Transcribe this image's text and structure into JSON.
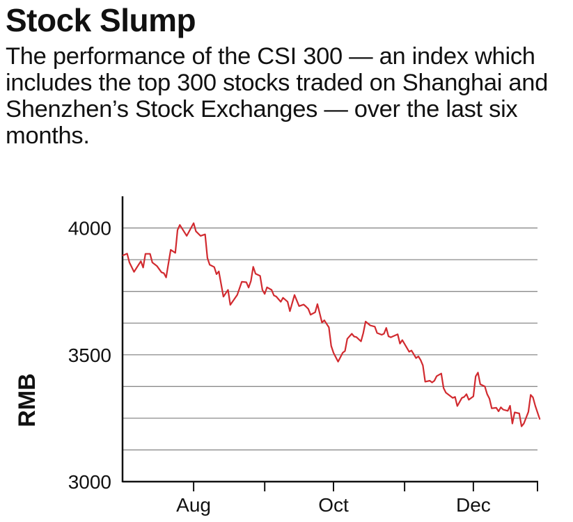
{
  "title": "Stock Slump",
  "subtitle": "The performance of the CSI 300 — an index which includes the top 300 stocks traded on Shanghai and Shenzhen’s Stock Exchanges — over the last six months.",
  "chart_data": {
    "type": "line",
    "title": "Stock Slump",
    "xlabel": "",
    "ylabel": "RMB",
    "ylim": [
      3000,
      4125
    ],
    "yticks": [
      3000,
      3500,
      4000
    ],
    "ygrid_step": 125,
    "grid": true,
    "xticks": [
      {
        "month": "08",
        "label": "Aug"
      },
      {
        "month": "09",
        "label": ""
      },
      {
        "month": "10",
        "label": "Oct"
      },
      {
        "month": "11",
        "label": ""
      },
      {
        "month": "12",
        "label": "Dec"
      },
      {
        "month": "13",
        "label": ""
      }
    ],
    "xrange": [
      "07-01",
      "12-31"
    ],
    "line_color": "#d12a2f",
    "series": [
      {
        "x": [
          "07-01",
          "07-03",
          "07-04",
          "07-06",
          "07-09",
          "07-10",
          "07-11",
          "07-13",
          "07-14",
          "07-16",
          "07-18",
          "07-19",
          "07-20",
          "07-22",
          "07-24",
          "07-25",
          "07-26",
          "07-29",
          "08-01",
          "08-02",
          "08-04",
          "08-06",
          "08-07",
          "08-08",
          "08-10",
          "08-11",
          "08-12",
          "08-14",
          "08-16",
          "08-17",
          "08-19",
          "08-20",
          "08-22",
          "08-24",
          "08-25",
          "08-26",
          "08-27",
          "08-28",
          "08-30",
          "08-31",
          "09-01",
          "09-02",
          "09-04",
          "09-05",
          "09-06",
          "09-08",
          "09-09",
          "09-11",
          "09-12",
          "09-14",
          "09-16",
          "09-18",
          "09-19",
          "09-20",
          "09-21",
          "09-23",
          "09-24",
          "09-26",
          "09-27",
          "09-29",
          "09-30",
          "10-01",
          "10-03",
          "10-05",
          "10-06",
          "10-07",
          "10-09",
          "10-10",
          "10-11",
          "10-13",
          "10-14",
          "10-15",
          "10-17",
          "10-19",
          "10-20",
          "10-22",
          "10-23",
          "10-24",
          "10-25",
          "10-26",
          "10-29",
          "10-30",
          "10-31",
          "11-03",
          "11-04",
          "11-06",
          "11-07",
          "11-08",
          "11-09",
          "11-10",
          "11-12",
          "11-13",
          "11-14",
          "11-15",
          "11-17",
          "11-18",
          "11-19",
          "11-22",
          "11-23",
          "11-24",
          "11-26",
          "11-27",
          "11-28",
          "11-29",
          "12-01",
          "12-02",
          "12-03",
          "12-04",
          "12-06",
          "12-07",
          "12-08",
          "12-09",
          "12-11",
          "12-12",
          "12-13",
          "12-14",
          "12-16",
          "12-17",
          "12-18",
          "12-19",
          "12-21",
          "12-22",
          "12-23",
          "12-25",
          "12-26",
          "12-27",
          "12-28",
          "12-30"
        ],
        "y": [
          3891,
          3899,
          3864,
          3827,
          3869,
          3844,
          3898,
          3898,
          3864,
          3850,
          3825,
          3822,
          3805,
          3914,
          3902,
          3992,
          4012,
          3969,
          4019,
          3987,
          3969,
          3975,
          3882,
          3855,
          3846,
          3818,
          3829,
          3729,
          3756,
          3697,
          3723,
          3736,
          3788,
          3786,
          3765,
          3791,
          3847,
          3820,
          3811,
          3756,
          3740,
          3766,
          3756,
          3734,
          3730,
          3709,
          3725,
          3709,
          3672,
          3736,
          3692,
          3698,
          3690,
          3681,
          3658,
          3668,
          3700,
          3627,
          3636,
          3608,
          3535,
          3508,
          3473,
          3508,
          3515,
          3563,
          3583,
          3572,
          3570,
          3553,
          3586,
          3631,
          3616,
          3611,
          3586,
          3579,
          3583,
          3606,
          3573,
          3569,
          3581,
          3544,
          3558,
          3512,
          3517,
          3487,
          3494,
          3479,
          3458,
          3394,
          3398,
          3391,
          3398,
          3416,
          3426,
          3369,
          3351,
          3330,
          3334,
          3298,
          3330,
          3334,
          3345,
          3323,
          3336,
          3415,
          3430,
          3384,
          3375,
          3345,
          3327,
          3289,
          3291,
          3277,
          3293,
          3284,
          3279,
          3299,
          3229,
          3273,
          3269,
          3218,
          3229,
          3275,
          3342,
          3332,
          3299,
          3245
        ]
      }
    ]
  }
}
